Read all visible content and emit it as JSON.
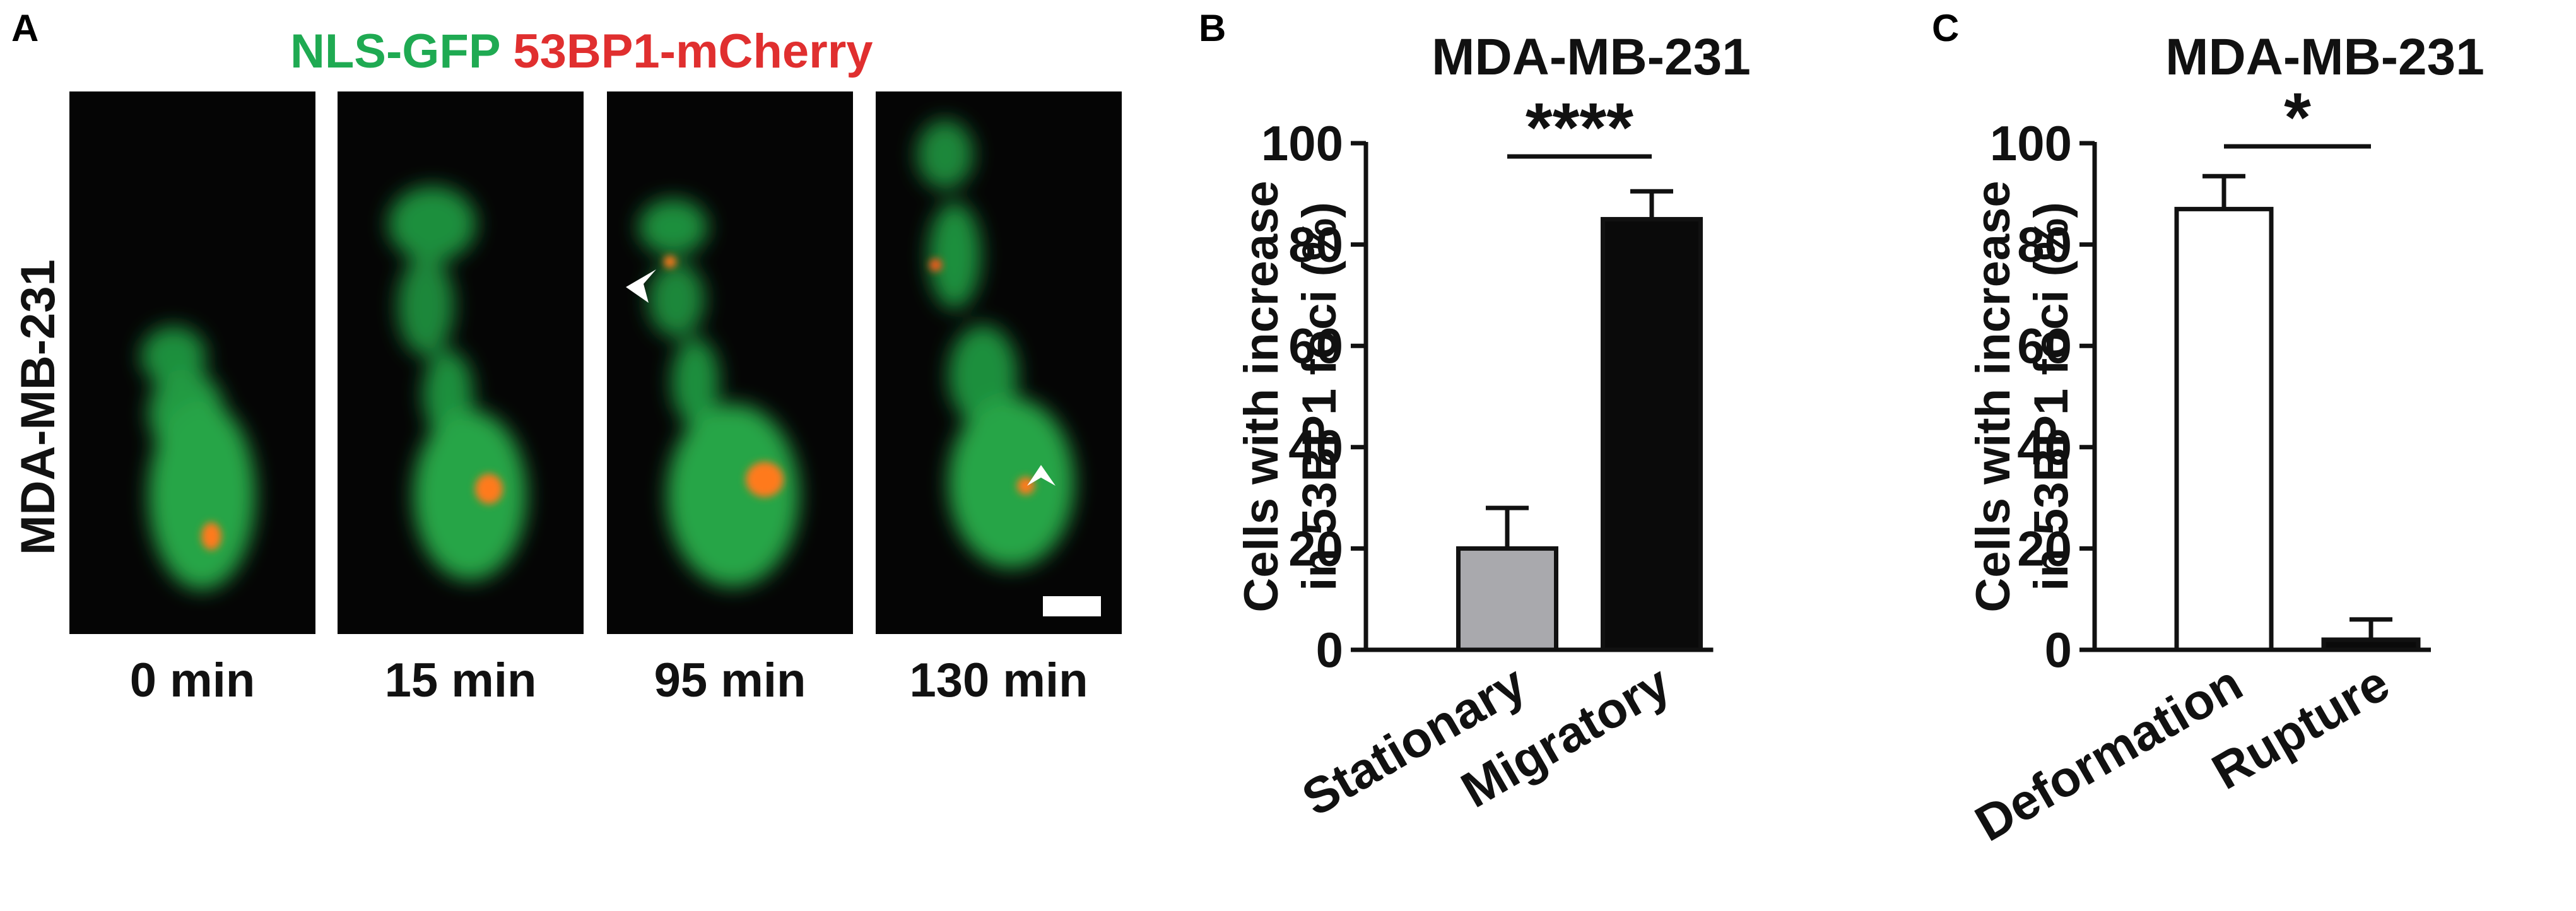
{
  "panel_a": {
    "letter": "A",
    "title_green": "NLS-GFP",
    "title_red": "53BP1-mCherry",
    "row_label": "MDA-MB-231",
    "time_labels": [
      "0 min",
      "15 min",
      "95 min",
      "130 min"
    ],
    "colors": {
      "gfp": "#1faa52",
      "mcherry": "#e02f2f",
      "background": "#050505"
    }
  },
  "chart_data": [
    {
      "panel": "B",
      "type": "bar",
      "title": "MDA-MB-231",
      "ylabel": "Cells with increase in 53BP1 foci (%)",
      "ylabel_lines": [
        "Cells with increase",
        "in 53BP1 foci (%)"
      ],
      "categories": [
        "Stationary",
        "Migratory"
      ],
      "values": [
        20,
        85
      ],
      "errors": [
        8,
        5.5
      ],
      "bar_colors": [
        "#a9a9ad",
        "#0a0a0a"
      ],
      "ylim": [
        0,
        100
      ],
      "yticks": [
        0,
        20,
        40,
        60,
        80,
        100
      ],
      "significance": "****"
    },
    {
      "panel": "C",
      "type": "bar",
      "title": "MDA-MB-231",
      "ylabel": "Cells with increase in 53BP1 foci (%)",
      "ylabel_lines": [
        "Cells with increase",
        "in 53BP1 foci (%)"
      ],
      "categories": [
        "Deformation",
        "Rupture"
      ],
      "values": [
        87,
        2
      ],
      "errors": [
        6.5,
        4
      ],
      "bar_colors": [
        "#ffffff",
        "#0a0a0a"
      ],
      "ylim": [
        0,
        100
      ],
      "yticks": [
        0,
        20,
        40,
        60,
        80,
        100
      ],
      "significance": "*"
    }
  ]
}
